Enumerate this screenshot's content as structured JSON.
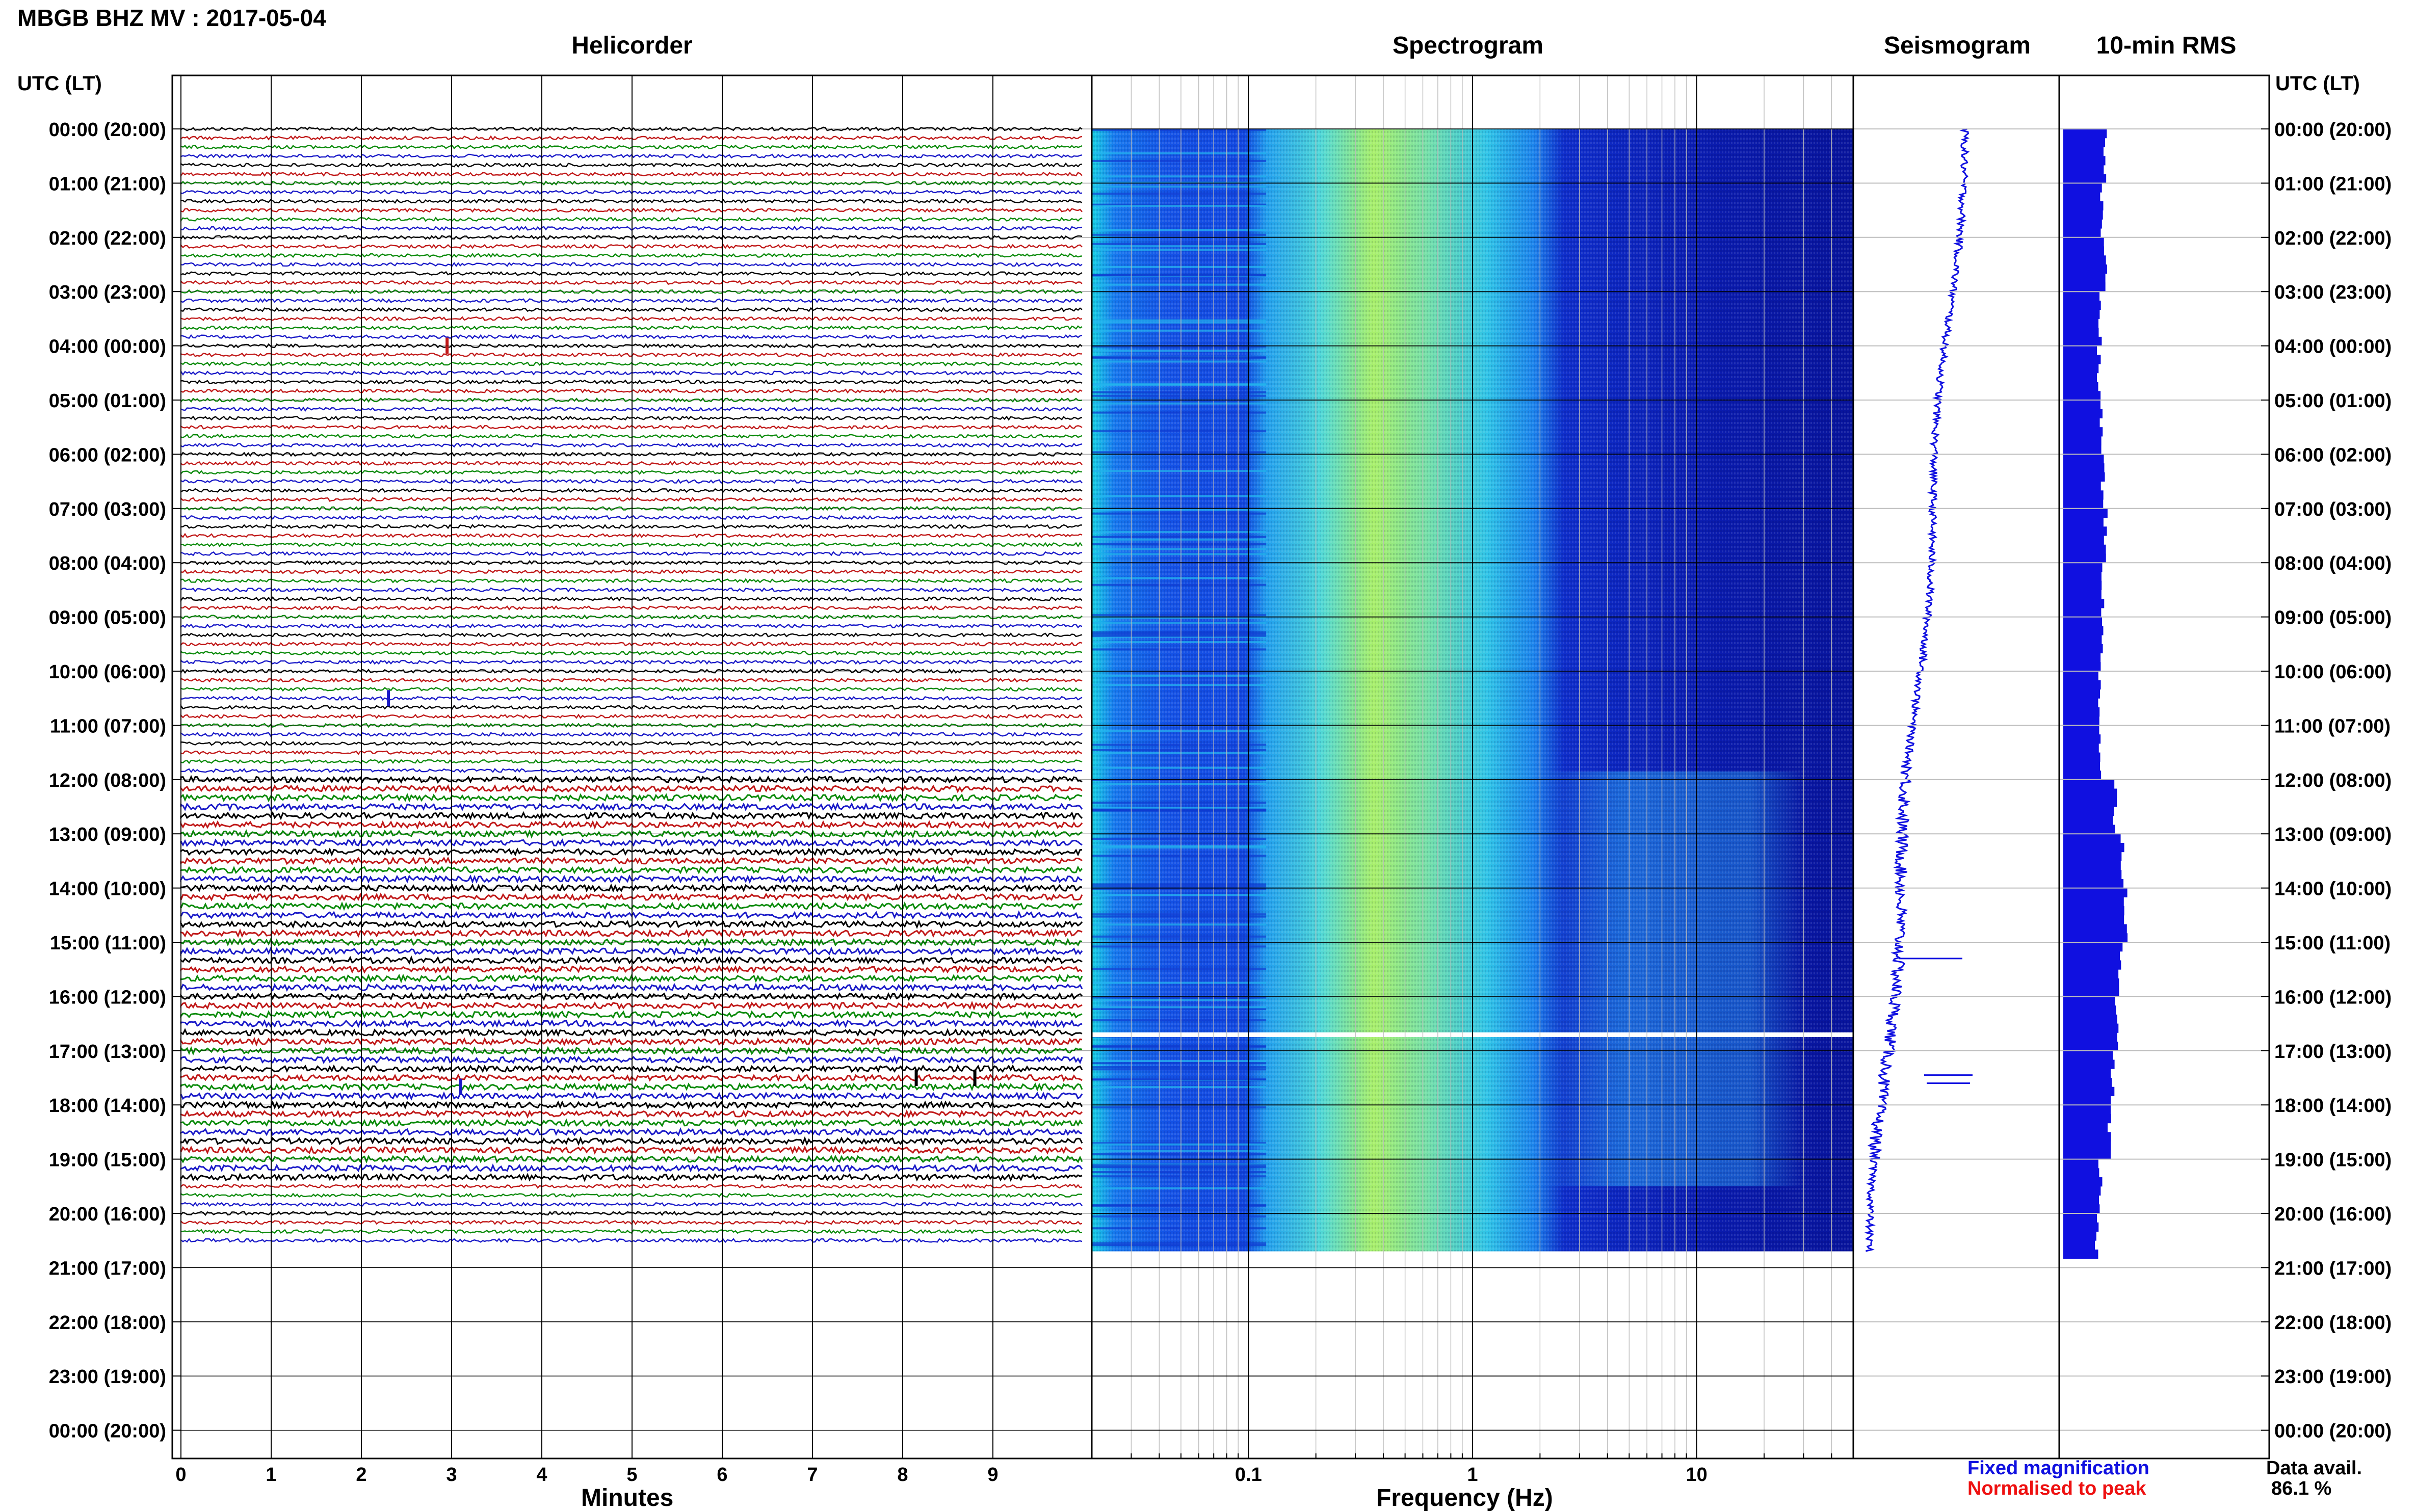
{
  "header": {
    "title": "MBGB BHZ MV : 2017-05-04"
  },
  "panels": {
    "helicorder": "Helicorder",
    "spectrogram": "Spectrogram",
    "seismogram": "Seismogram",
    "rms": "10-min RMS"
  },
  "time_axis": {
    "heading": "UTC (LT)",
    "labels": [
      "00:00 (20:00)",
      "01:00 (21:00)",
      "02:00 (22:00)",
      "03:00 (23:00)",
      "04:00 (00:00)",
      "05:00 (01:00)",
      "06:00 (02:00)",
      "07:00 (03:00)",
      "08:00 (04:00)",
      "09:00 (05:00)",
      "10:00 (06:00)",
      "11:00 (07:00)",
      "12:00 (08:00)",
      "13:00 (09:00)",
      "14:00 (10:00)",
      "15:00 (11:00)",
      "16:00 (12:00)",
      "17:00 (13:00)",
      "18:00 (14:00)",
      "19:00 (15:00)",
      "20:00 (16:00)",
      "21:00 (17:00)",
      "22:00 (18:00)",
      "23:00 (19:00)",
      "00:00 (20:00)"
    ]
  },
  "footer": {
    "minutes_label": "Minutes",
    "frequency_label": "Frequency (Hz)",
    "legend_fixed": "Fixed magnification",
    "legend_normalised": "Normalised to peak",
    "data_avail_label": "Data avail.",
    "data_avail_value": "86.1 %"
  },
  "colors": {
    "fixed": "#1010e0",
    "normalised": "#ee1111",
    "trace_cycle": [
      "#000000",
      "#c01818",
      "#0a8a0a",
      "#1a1ac8"
    ]
  },
  "chart_data": [
    {
      "type": "line",
      "name": "helicorder",
      "xlabel": "Minutes",
      "xlim": [
        0,
        10
      ],
      "x_ticks": [
        0,
        1,
        2,
        3,
        4,
        5,
        6,
        7,
        8,
        9
      ],
      "rows_per_hour": 6,
      "data_end_hour": 20.7,
      "hour_range": [
        0,
        24
      ]
    },
    {
      "type": "heatmap",
      "name": "spectrogram",
      "xlabel": "Frequency (Hz)",
      "x_scale": "log",
      "xlim": [
        0.02,
        50
      ],
      "x_ticks": [
        0.1,
        1,
        10
      ],
      "x_tick_labels": [
        "0.1",
        "1",
        "10"
      ],
      "data_end_hour": 20.7,
      "gap_hour": 16.7
    },
    {
      "type": "line",
      "name": "seismogram",
      "data_end_hour": 20.7
    },
    {
      "type": "bar",
      "name": "10-min RMS",
      "orientation": "horizontal",
      "interval_minutes": 10,
      "hour_start": [
        0,
        1,
        2,
        3,
        4,
        5,
        6,
        7,
        8,
        9,
        10,
        11,
        12,
        13,
        14,
        15,
        16,
        17,
        18,
        19,
        20
      ],
      "relative_level": [
        0.55,
        0.5,
        0.55,
        0.48,
        0.46,
        0.5,
        0.52,
        0.55,
        0.52,
        0.5,
        0.48,
        0.48,
        0.68,
        0.78,
        0.82,
        0.75,
        0.7,
        0.65,
        0.6,
        0.48,
        0.44
      ]
    }
  ]
}
